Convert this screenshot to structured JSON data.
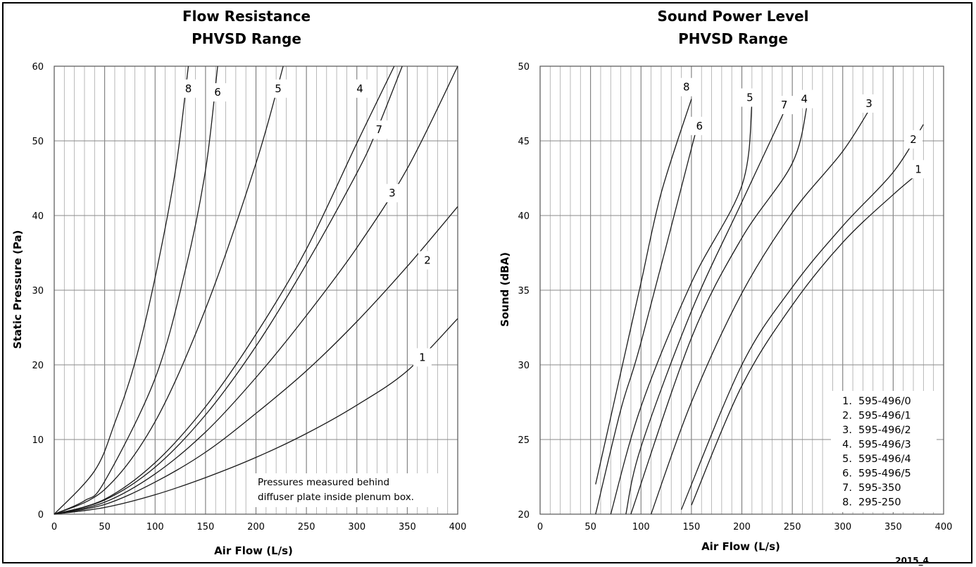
{
  "figure_code": "2015_4",
  "chart_data": [
    {
      "type": "line",
      "title": [
        "Flow Resistance",
        "PHVSD Range"
      ],
      "xlabel": "Air Flow (L/s)",
      "ylabel": "Static Pressure (Pa)",
      "xlim": [
        0,
        400
      ],
      "ylim": [
        0,
        60
      ],
      "x_ticks": [
        0,
        50,
        100,
        150,
        200,
        250,
        300,
        350,
        400
      ],
      "y_ticks": [
        0,
        10,
        20,
        30,
        40,
        50,
        60
      ],
      "grid": true,
      "annotation": [
        "Pressures measured behind",
        "diffuser plate inside plenum box."
      ],
      "series": [
        {
          "name": "1",
          "label_at": [
            365,
            21
          ],
          "points": [
            [
              0,
              0
            ],
            [
              50,
              0.9
            ],
            [
              100,
              2.6
            ],
            [
              150,
              4.9
            ],
            [
              200,
              7.6
            ],
            [
              250,
              10.8
            ],
            [
              300,
              14.6
            ],
            [
              350,
              19.2
            ],
            [
              400,
              26.2
            ]
          ]
        },
        {
          "name": "2",
          "label_at": [
            370,
            34
          ],
          "points": [
            [
              0,
              0
            ],
            [
              50,
              1.3
            ],
            [
              100,
              4.3
            ],
            [
              150,
              8.3
            ],
            [
              200,
              13.5
            ],
            [
              250,
              19.2
            ],
            [
              300,
              25.8
            ],
            [
              350,
              33.2
            ],
            [
              400,
              41.2
            ]
          ]
        },
        {
          "name": "3",
          "label_at": [
            335,
            43
          ],
          "points": [
            [
              0,
              0
            ],
            [
              50,
              1.6
            ],
            [
              100,
              5.4
            ],
            [
              150,
              11.0
            ],
            [
              200,
              18.3
            ],
            [
              250,
              26.6
            ],
            [
              300,
              35.7
            ],
            [
              350,
              46.3
            ],
            [
              400,
              60
            ]
          ]
        },
        {
          "name": "4",
          "label_at": [
            303,
            57
          ],
          "points": [
            [
              0,
              0
            ],
            [
              50,
              2.0
            ],
            [
              100,
              6.9
            ],
            [
              150,
              14.4
            ],
            [
              200,
              24.1
            ],
            [
              250,
              35.5
            ],
            [
              300,
              49.7
            ],
            [
              337,
              60
            ]
          ]
        },
        {
          "name": "5",
          "label_at": [
            222,
            57
          ],
          "points": [
            [
              0,
              0
            ],
            [
              50,
              3.3
            ],
            [
              100,
              12.4
            ],
            [
              150,
              27.5
            ],
            [
              200,
              47.0
            ],
            [
              227,
              60
            ]
          ]
        },
        {
          "name": "6",
          "label_at": [
            162,
            56.5
          ],
          "points": [
            [
              0,
              0
            ],
            [
              30,
              1.8
            ],
            [
              50,
              4.4
            ],
            [
              100,
              18.2
            ],
            [
              130,
              32.7
            ],
            [
              150,
              46.1
            ],
            [
              162,
              60
            ]
          ]
        },
        {
          "name": "7",
          "label_at": [
            322,
            51.5
          ],
          "points": [
            [
              0,
              0
            ],
            [
              50,
              1.9
            ],
            [
              100,
              6.3
            ],
            [
              150,
              13.3
            ],
            [
              200,
              22.5
            ],
            [
              250,
              33.5
            ],
            [
              300,
              45.7
            ],
            [
              320,
              51.5
            ],
            [
              345,
              60
            ]
          ]
        },
        {
          "name": "8",
          "label_at": [
            133,
            57
          ],
          "points": [
            [
              0,
              0
            ],
            [
              40,
              5.8
            ],
            [
              60,
              12.2
            ],
            [
              80,
              20.3
            ],
            [
              100,
              31.7
            ],
            [
              120,
              45.9
            ],
            [
              133,
              60
            ]
          ]
        }
      ]
    },
    {
      "type": "line",
      "title": [
        "Sound Power Level",
        "PHVSD Range"
      ],
      "xlabel": "Air Flow (L/s)",
      "ylabel": "Sound (dBA)",
      "xlim": [
        0,
        400
      ],
      "ylim": [
        20,
        50
      ],
      "x_ticks": [
        0,
        50,
        100,
        150,
        200,
        250,
        300,
        350,
        400
      ],
      "y_ticks": [
        20,
        25,
        30,
        35,
        40,
        45,
        50
      ],
      "grid": true,
      "legend": {
        "position": "bottom-right",
        "entries": [
          "595-496/0",
          "595-496/1",
          "595-496/2",
          "595-496/3",
          "595-496/4",
          "595-496/5",
          "595-350",
          "295-250"
        ]
      },
      "series": [
        {
          "name": "1",
          "label_at": [
            375,
            43.1
          ],
          "points": [
            [
              150,
              20.6
            ],
            [
              200,
              28.6
            ],
            [
              250,
              34.0
            ],
            [
              300,
              38.2
            ],
            [
              350,
              41.4
            ],
            [
              380,
              43.1
            ]
          ]
        },
        {
          "name": "2",
          "label_at": [
            370,
            45.1
          ],
          "points": [
            [
              140,
              20.3
            ],
            [
              200,
              30.0
            ],
            [
              250,
              35.2
            ],
            [
              300,
              39.3
            ],
            [
              350,
              42.9
            ],
            [
              380,
              46.1
            ]
          ]
        },
        {
          "name": "3",
          "label_at": [
            326,
            47.5
          ],
          "points": [
            [
              110,
              20.0
            ],
            [
              150,
              27.5
            ],
            [
              200,
              34.8
            ],
            [
              250,
              40.2
            ],
            [
              300,
              44.3
            ],
            [
              330,
              47.5
            ]
          ]
        },
        {
          "name": "4",
          "label_at": [
            262,
            47.8
          ],
          "points": [
            [
              90,
              20.0
            ],
            [
              150,
              31.8
            ],
            [
              200,
              38.5
            ],
            [
              250,
              43.5
            ],
            [
              265,
              47.5
            ]
          ]
        },
        {
          "name": "5",
          "label_at": [
            208,
            47.9
          ],
          "points": [
            [
              70,
              20.0
            ],
            [
              100,
              27.2
            ],
            [
              150,
              35.5
            ],
            [
              200,
              42.0
            ],
            [
              210,
              47.5
            ]
          ]
        },
        {
          "name": "6",
          "label_at": [
            158,
            46.0
          ],
          "points": [
            [
              55,
              20.0
            ],
            [
              80,
              27.0
            ],
            [
              100,
              31.5
            ],
            [
              150,
              44.5
            ],
            [
              152,
              45.0
            ]
          ]
        },
        {
          "name": "7",
          "label_at": [
            242,
            47.4
          ],
          "points": [
            [
              85,
              20.0
            ],
            [
              100,
              24.5
            ],
            [
              150,
              33.6
            ],
            [
              200,
              40.9
            ],
            [
              245,
              47.4
            ]
          ]
        },
        {
          "name": "8",
          "label_at": [
            145,
            48.6
          ],
          "points": [
            [
              55,
              22.0
            ],
            [
              80,
              29.5
            ],
            [
              100,
              35.5
            ],
            [
              120,
              41.5
            ],
            [
              150,
              47.8
            ]
          ]
        }
      ]
    }
  ]
}
